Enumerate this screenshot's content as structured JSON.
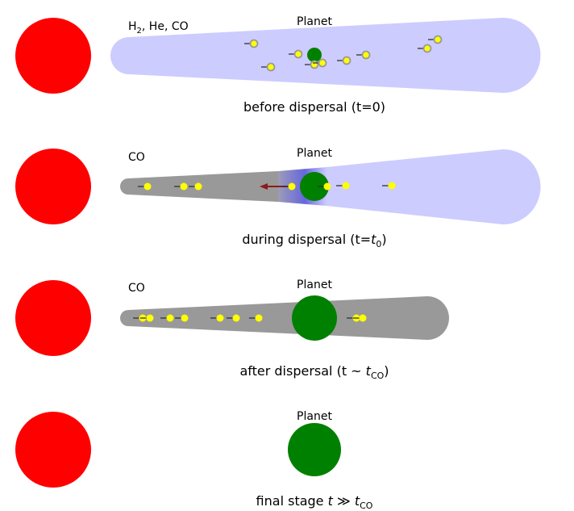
{
  "panels": [
    {
      "gas_label": "H",
      "gas_sub": "2",
      "gas_rest": ", He, CO",
      "planet_label": "Planet",
      "caption": "before dispersal (t=0)"
    },
    {
      "gas_label": "CO",
      "planet_label": "Planet",
      "caption_pre": "during dispersal (t=",
      "caption_var": "t",
      "caption_sub": "0",
      "caption_post": ")"
    },
    {
      "gas_label": "CO",
      "planet_label": "Planet",
      "caption_pre": "after dispersal (t ~ ",
      "caption_var": "t",
      "caption_sub": "CO",
      "caption_post": ")"
    },
    {
      "planet_label": "Planet",
      "caption_pre": "final stage ",
      "caption_var": "t",
      "caption_op": " ≫ ",
      "caption_var2": "t",
      "caption_sub": "CO"
    }
  ],
  "colors": {
    "star": "#ff0000",
    "planet": "#008000",
    "primordial_gas": "#ccccff",
    "co_gas": "#999999",
    "grain": "#ffff00",
    "migration_arrow": "#8b1a1a"
  }
}
